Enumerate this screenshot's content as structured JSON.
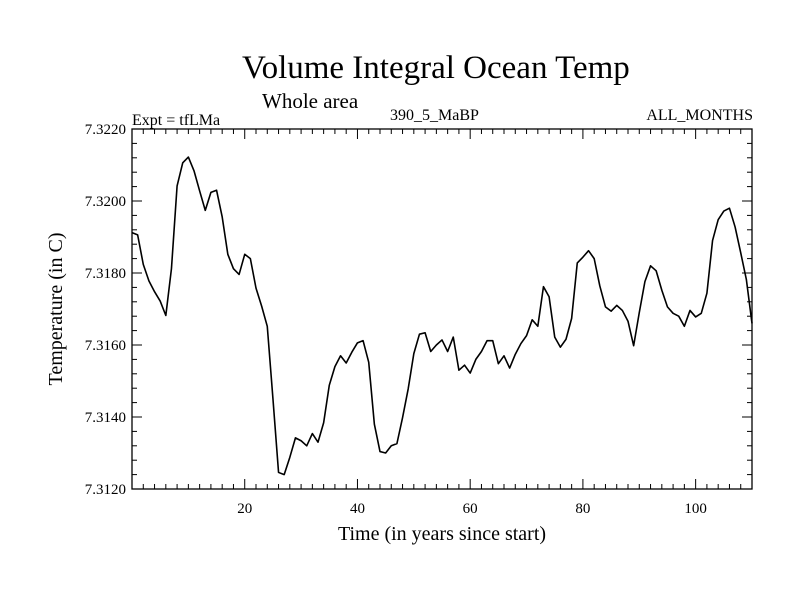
{
  "chart_data": {
    "type": "line",
    "title": "Volume Integral Ocean Temp",
    "subtitle": "Whole area",
    "left_label": "Expt = tfLMa",
    "center_label": "390_5_MaBP",
    "right_label": "ALL_MONTHS",
    "xlabel": "Time (in years since start)",
    "ylabel": "Temperature (in C)",
    "xlim": [
      0,
      110
    ],
    "ylim": [
      7.312,
      7.322
    ],
    "x_major_ticks": [
      20,
      40,
      60,
      80,
      100
    ],
    "x_tick_labels": [
      "20",
      "40",
      "60",
      "80",
      "100"
    ],
    "x_minor_step": 2,
    "y_major_ticks": [
      7.312,
      7.314,
      7.316,
      7.318,
      7.32,
      7.322
    ],
    "y_tick_labels": [
      "7.3120",
      "7.3140",
      "7.3160",
      "7.3180",
      "7.3200",
      "7.3220"
    ],
    "y_minor_step": 0.0004,
    "grid": false,
    "series": [
      {
        "name": "Volume Integral Ocean Temp",
        "color": "#000000",
        "x": [
          0,
          1,
          2,
          3,
          4,
          5,
          6,
          7,
          8,
          9,
          10,
          11,
          12,
          13,
          14,
          15,
          16,
          17,
          18,
          19,
          20,
          21,
          22,
          23,
          24,
          25,
          26,
          27,
          28,
          29,
          30,
          31,
          32,
          33,
          34,
          35,
          36,
          37,
          38,
          39,
          40,
          41,
          42,
          43,
          44,
          45,
          46,
          47,
          48,
          49,
          50,
          51,
          52,
          53,
          54,
          55,
          56,
          57,
          58,
          59,
          60,
          61,
          62,
          63,
          64,
          65,
          66,
          67,
          68,
          69,
          70,
          71,
          72,
          73,
          74,
          75,
          76,
          77,
          78,
          79,
          80,
          81,
          82,
          83,
          84,
          85,
          86,
          87,
          88,
          89,
          90,
          91,
          92,
          93,
          94,
          95,
          96,
          97,
          98,
          99,
          100,
          101,
          102,
          103,
          104,
          105,
          106,
          107,
          108,
          109,
          110
        ],
        "values": [
          7.31912,
          7.31906,
          7.31824,
          7.31778,
          7.31748,
          7.31722,
          7.31682,
          7.31812,
          7.32042,
          7.32106,
          7.32122,
          7.32084,
          7.32028,
          7.31974,
          7.32024,
          7.3203,
          7.31956,
          7.31852,
          7.31812,
          7.31796,
          7.31852,
          7.3184,
          7.31758,
          7.31708,
          7.31652,
          7.31452,
          7.31246,
          7.3124,
          7.31288,
          7.31342,
          7.31334,
          7.3132,
          7.31354,
          7.3133,
          7.31384,
          7.31488,
          7.3154,
          7.3157,
          7.3155,
          7.3158,
          7.31606,
          7.31612,
          7.31552,
          7.3138,
          7.31304,
          7.313,
          7.3132,
          7.31326,
          7.31398,
          7.31478,
          7.31576,
          7.3163,
          7.31634,
          7.31582,
          7.316,
          7.31614,
          7.31582,
          7.31622,
          7.3153,
          7.31544,
          7.31522,
          7.3156,
          7.31582,
          7.31612,
          7.31612,
          7.31548,
          7.3157,
          7.31536,
          7.31574,
          7.31604,
          7.31626,
          7.3167,
          7.31652,
          7.31762,
          7.31734,
          7.31622,
          7.31594,
          7.31616,
          7.31674,
          7.31828,
          7.31844,
          7.31862,
          7.3184,
          7.31764,
          7.31706,
          7.31694,
          7.3171,
          7.31696,
          7.31666,
          7.31598,
          7.3169,
          7.31776,
          7.3182,
          7.31806,
          7.31752,
          7.31706,
          7.31688,
          7.3168,
          7.31652,
          7.31696,
          7.31678,
          7.31688,
          7.31744,
          7.3189,
          7.31948,
          7.31972,
          7.3198,
          7.31928,
          7.31856,
          7.31782,
          7.3166
        ]
      }
    ]
  }
}
